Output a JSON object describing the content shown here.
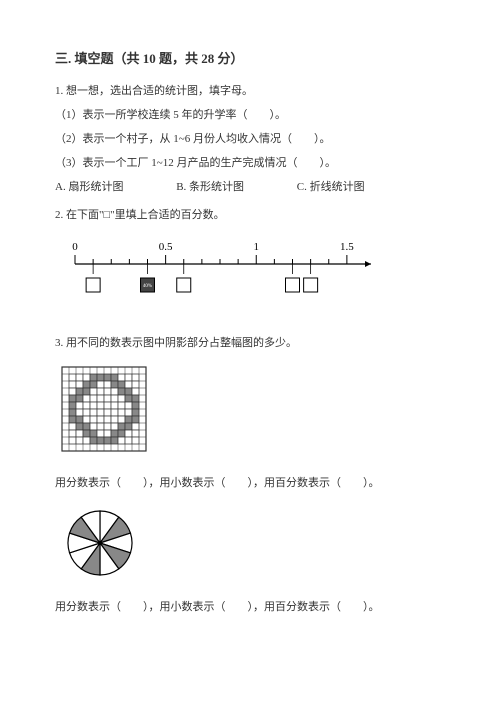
{
  "section": {
    "title": "三. 填空题（共 10 题，共 28 分）"
  },
  "q1": {
    "prompt": "1. 想一想，选出合适的统计图，填字母。",
    "sub1": "（1）表示一所学校连续 5 年的升学率（　　）。",
    "sub2": "（2）表示一个村子，从 1~6 月份人均收入情况（　　）。",
    "sub3": "（3）表示一个工厂 1~12 月产品的生产完成情况（　　）。",
    "optA": "A. 扇形统计图",
    "optB": "B. 条形统计图",
    "optC": "C. 折线统计图"
  },
  "q2": {
    "prompt": "2. 在下面\"□\"里填上合适的百分数。",
    "numberLine": {
      "labels": [
        "0",
        "0.5",
        "1",
        "1.5"
      ],
      "tick_positions": [
        0,
        0.1,
        0.2,
        0.3,
        0.4,
        0.5,
        0.6,
        0.7,
        0.8,
        0.9,
        1.0,
        1.1,
        1.2,
        1.3,
        1.4,
        1.5
      ],
      "major_ticks": [
        0,
        0.5,
        1.0,
        1.5
      ],
      "boxes": [
        {
          "at": 0.1,
          "filled": false
        },
        {
          "at": 0.4,
          "filled": true,
          "text": "40%"
        },
        {
          "at": 0.6,
          "filled": false
        },
        {
          "at": 1.2,
          "filled": false
        },
        {
          "at": 1.3,
          "filled": false
        }
      ],
      "line_color": "#000000",
      "box_stroke": "#000000",
      "box_fill_dark": "#444444",
      "xlim": [
        0,
        1.6
      ]
    }
  },
  "q3": {
    "prompt": "3. 用不同的数表示图中阴影部分占整幅图的多少。",
    "grid": {
      "rows": 12,
      "cols": 12,
      "cell_size": 7,
      "inner_rows": 10,
      "inner_cols": 10,
      "ring_shaded": true,
      "shade_color": "#888888",
      "light_color": "#dddddd",
      "line_color": "#333333",
      "shaded_cells": [
        [
          0,
          3
        ],
        [
          0,
          4
        ],
        [
          0,
          5
        ],
        [
          0,
          6
        ],
        [
          1,
          2
        ],
        [
          1,
          3
        ],
        [
          1,
          6
        ],
        [
          1,
          7
        ],
        [
          2,
          1
        ],
        [
          2,
          2
        ],
        [
          2,
          7
        ],
        [
          2,
          8
        ],
        [
          3,
          0
        ],
        [
          3,
          1
        ],
        [
          3,
          8
        ],
        [
          3,
          9
        ],
        [
          4,
          0
        ],
        [
          4,
          9
        ],
        [
          5,
          0
        ],
        [
          5,
          9
        ],
        [
          6,
          0
        ],
        [
          6,
          1
        ],
        [
          6,
          8
        ],
        [
          6,
          9
        ],
        [
          7,
          1
        ],
        [
          7,
          2
        ],
        [
          7,
          7
        ],
        [
          7,
          8
        ],
        [
          8,
          2
        ],
        [
          8,
          3
        ],
        [
          8,
          6
        ],
        [
          8,
          7
        ],
        [
          9,
          3
        ],
        [
          9,
          4
        ],
        [
          9,
          5
        ],
        [
          9,
          6
        ]
      ]
    },
    "answerLine": "用分数表示（　　），用小数表示（　　），用百分数表示（　　）。",
    "pie": {
      "slices": 10,
      "shaded_indices": [
        1,
        3,
        5,
        8
      ],
      "radius": 32,
      "fill_shaded": "#888888",
      "fill_light": "#ffffff",
      "stroke": "#000000"
    },
    "answerLine2": "用分数表示（　　），用小数表示（　　），用百分数表示（　　）。"
  }
}
